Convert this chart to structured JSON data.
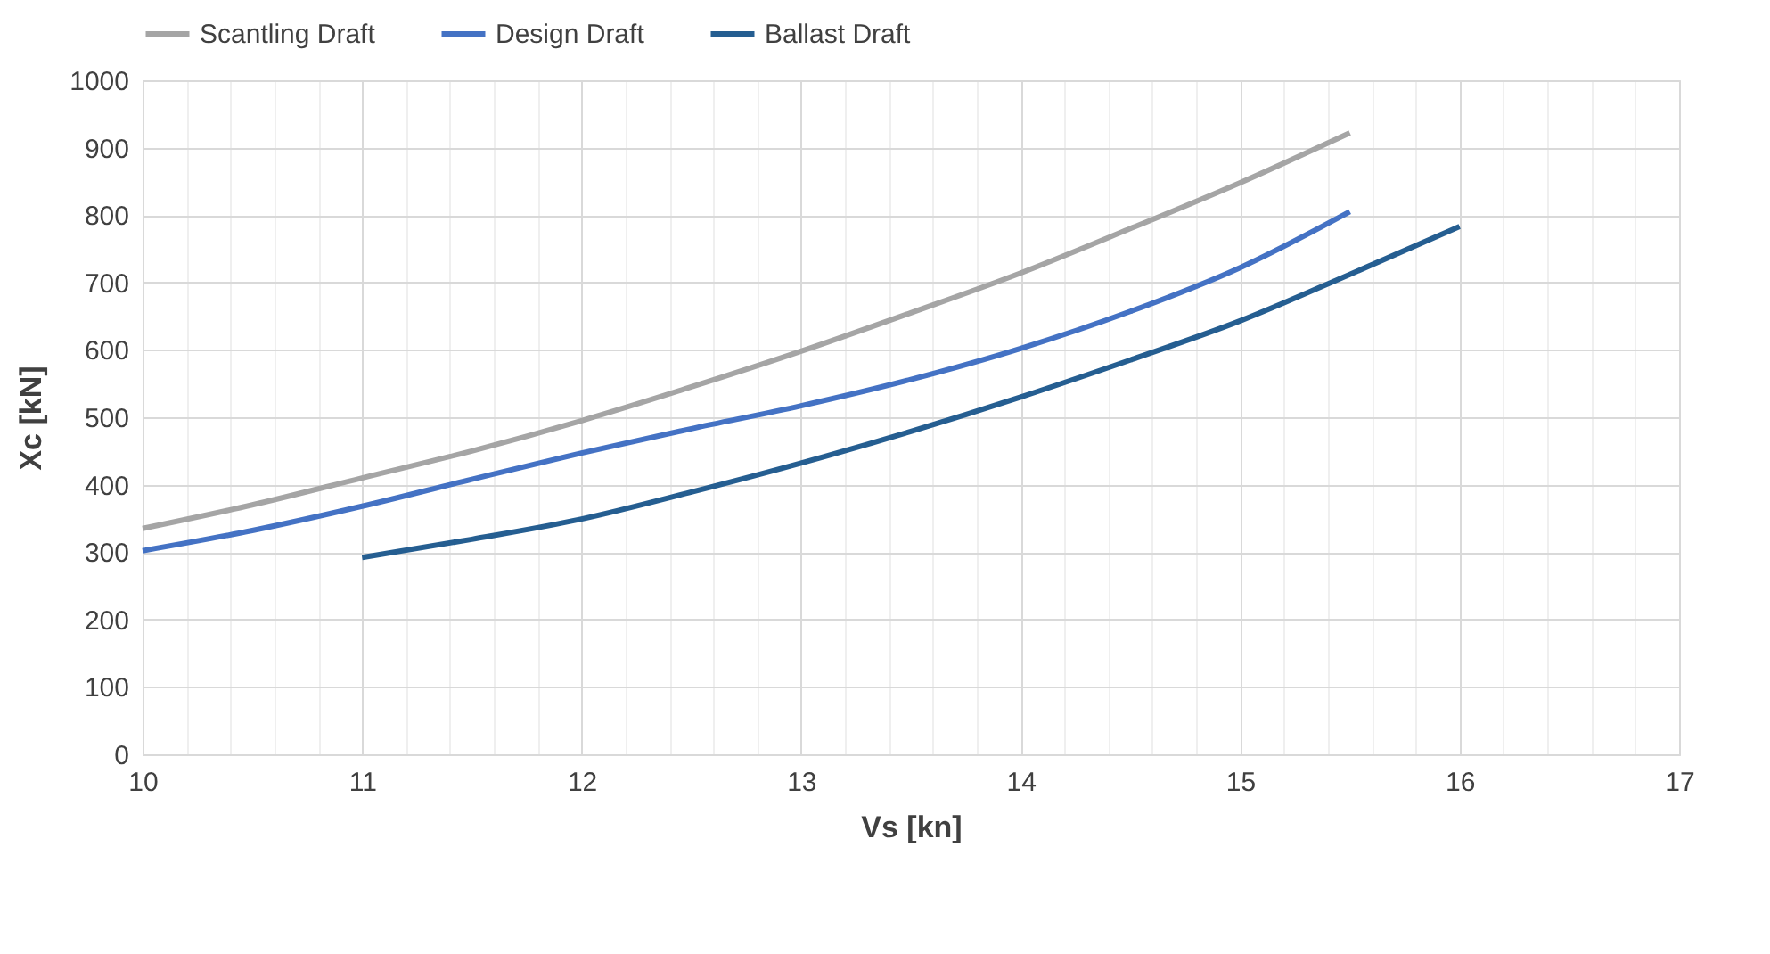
{
  "chart_data": {
    "type": "line",
    "xlabel": "Vs [kn]",
    "ylabel": "Xc [kN]",
    "xlim": [
      10,
      17
    ],
    "ylim": [
      0,
      1000
    ],
    "xticks": [
      10,
      {
        "value": 10.2,
        "label": null
      },
      {
        "value": 10.4,
        "label": null
      },
      {
        "value": 10.6,
        "label": null
      },
      {
        "value": 10.8,
        "label": null
      },
      11,
      {
        "value": 11.2,
        "label": null
      },
      {
        "value": 11.4,
        "label": null
      },
      {
        "value": 11.6,
        "label": null
      },
      {
        "value": 11.8,
        "label": null
      },
      12,
      {
        "value": 12.2,
        "label": null
      },
      {
        "value": 12.4,
        "label": null
      },
      {
        "value": 12.6,
        "label": null
      },
      {
        "value": 12.8,
        "label": null
      },
      13,
      {
        "value": 13.2,
        "label": null
      },
      {
        "value": 13.4,
        "label": null
      },
      {
        "value": 13.6,
        "label": null
      },
      {
        "value": 13.8,
        "label": null
      },
      14,
      {
        "value": 14.2,
        "label": null
      },
      {
        "value": 14.4,
        "label": null
      },
      {
        "value": 14.6,
        "label": null
      },
      {
        "value": 14.8,
        "label": null
      },
      15,
      {
        "value": 15.2,
        "label": null
      },
      {
        "value": 15.4,
        "label": null
      },
      {
        "value": 15.6,
        "label": null
      },
      {
        "value": 15.8,
        "label": null
      },
      16,
      {
        "value": 16.2,
        "label": null
      },
      {
        "value": 16.4,
        "label": null
      },
      {
        "value": 16.6,
        "label": null
      },
      {
        "value": 16.8,
        "label": null
      },
      17
    ],
    "yticks": [
      0,
      100,
      200,
      300,
      400,
      500,
      600,
      700,
      800,
      900,
      1000
    ],
    "grid": true,
    "legend": "top",
    "line_style": "solid",
    "marker": "none",
    "series": [
      {
        "name": "Scantling Draft",
        "color": "#a5a5a5",
        "x": [
          10,
          10.5,
          11,
          11.5,
          12,
          12.5,
          13,
          13.5,
          14,
          14.5,
          15,
          15.5
        ],
        "values": [
          335,
          370,
          410,
          450,
          495,
          545,
          598,
          655,
          714,
          780,
          848,
          922
        ]
      },
      {
        "name": "Design Draft",
        "color": "#4472c4",
        "x": [
          10,
          10.5,
          11,
          11.5,
          12,
          12.5,
          13,
          13.5,
          14,
          14.5,
          15,
          15.5
        ],
        "values": [
          302,
          332,
          368,
          408,
          447,
          483,
          517,
          556,
          602,
          657,
          722,
          805
        ]
      },
      {
        "name": "Ballast Draft",
        "color": "#255e91",
        "x": [
          11,
          11.5,
          12,
          12.5,
          13,
          13.5,
          14,
          14.5,
          15,
          15.5,
          16
        ],
        "values": [
          292,
          319,
          349,
          389,
          432,
          479,
          530,
          585,
          643,
          712,
          783
        ]
      }
    ]
  }
}
